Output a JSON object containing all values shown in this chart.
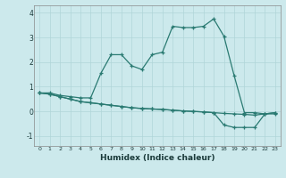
{
  "xlabel": "Humidex (Indice chaleur)",
  "bg_color": "#cce9ec",
  "line_color": "#2a7a72",
  "grid_color": "#b0d5d8",
  "x_values": [
    0,
    1,
    2,
    3,
    4,
    5,
    6,
    7,
    8,
    9,
    10,
    11,
    12,
    13,
    14,
    15,
    16,
    17,
    18,
    19,
    20,
    21,
    22,
    23
  ],
  "series1": [
    0.75,
    0.75,
    0.65,
    0.6,
    0.55,
    0.55,
    1.55,
    2.3,
    2.3,
    1.85,
    1.7,
    2.3,
    2.4,
    3.45,
    3.4,
    3.4,
    3.45,
    3.75,
    3.05,
    1.45,
    -0.05,
    -0.05,
    -0.1,
    -0.1
  ],
  "series2": [
    0.75,
    0.7,
    0.6,
    0.5,
    0.4,
    0.35,
    0.3,
    0.25,
    0.2,
    0.15,
    0.12,
    0.1,
    0.08,
    0.05,
    0.02,
    0.0,
    -0.02,
    -0.05,
    -0.08,
    -0.1,
    -0.12,
    -0.15,
    -0.1,
    -0.05
  ],
  "series3": [
    0.75,
    0.7,
    0.6,
    0.5,
    0.4,
    0.35,
    0.3,
    0.25,
    0.2,
    0.15,
    0.12,
    0.1,
    0.08,
    0.05,
    0.02,
    0.0,
    -0.02,
    -0.05,
    -0.55,
    -0.65,
    -0.65,
    -0.65,
    -0.1,
    -0.05
  ],
  "ylim": [
    -1.4,
    4.3
  ],
  "xlim": [
    -0.5,
    23.5
  ],
  "yticks": [
    -1,
    0,
    1,
    2,
    3,
    4
  ],
  "xticks": [
    0,
    1,
    2,
    3,
    4,
    5,
    6,
    7,
    8,
    9,
    10,
    11,
    12,
    13,
    14,
    15,
    16,
    17,
    18,
    19,
    20,
    21,
    22,
    23
  ]
}
